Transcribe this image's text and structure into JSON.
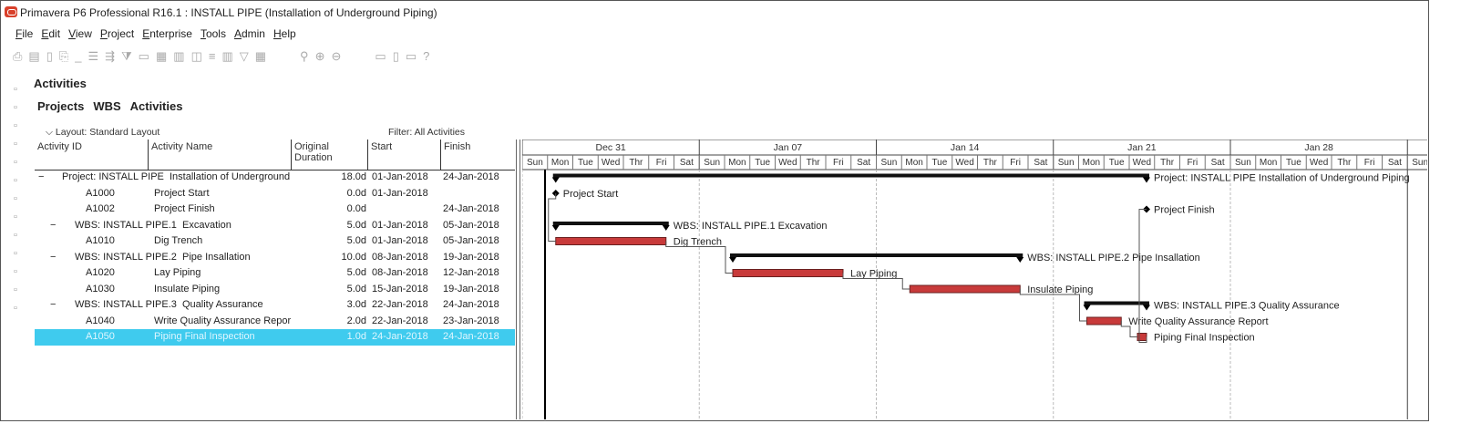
{
  "app": {
    "title": "Primavera P6 Professional R16.1 : INSTALL PIPE (Installation of Underground Piping)"
  },
  "menu": [
    "File",
    "Edit",
    "View",
    "Project",
    "Enterprise",
    "Tools",
    "Admin",
    "Help"
  ],
  "toolbar_icons": [
    "print-icon",
    "print-preview-icon",
    "page-setup-icon",
    "print-settings-icon",
    "blank-icon",
    "columns-icon",
    "group-sort-icon",
    "filter-icon",
    "bars-icon",
    "layout-icon",
    "spreadsheet-icon",
    "timescale-icon",
    "align-icon",
    "chart-icon",
    "filter-funnel-icon",
    "table-icon",
    "link-icon",
    "zoom-in-icon",
    "zoom-out-icon",
    "split-view-icon",
    "panel-icon",
    "notes-icon",
    "help-icon"
  ],
  "left_icons": [
    "add-icon",
    "delete-icon",
    "copy-icon",
    "collapse-icon",
    "expand-icon",
    "schedule-icon",
    "level-icon",
    "wbs-icon",
    "assign-icon",
    "report-icon",
    "filter-icon",
    "flag-icon",
    "sort-icon"
  ],
  "page": {
    "heading": "Activities",
    "tabs": [
      "Projects",
      "WBS",
      "Activities"
    ],
    "layout_label": "Layout: Standard Layout",
    "filter_label": "Filter: All Activities"
  },
  "columns": {
    "id": "Activity ID",
    "name": "Activity Name",
    "dur": "Original Duration",
    "start": "Start",
    "finish": "Finish"
  },
  "colors": {
    "bar": "#c83a3a",
    "summary": "#111111",
    "selected": "#3fcbee"
  },
  "timescale": {
    "weeks": [
      "Dec 31",
      "Jan 07",
      "Jan 14",
      "Jan 21",
      "Jan 28"
    ],
    "days": [
      "Sun",
      "Mon",
      "Tue",
      "Wed",
      "Thr",
      "Fri",
      "Sat"
    ]
  },
  "rows": [
    {
      "type": "project",
      "id": "Project: INSTALL PIPE",
      "name": "Installation of Underground Pi",
      "dur": "18.0d",
      "start": "01-Jan-2018",
      "finish": "24-Jan-2018",
      "label": "Project: INSTALL PIPE  Installation of Underground Piping"
    },
    {
      "type": "milestone",
      "id": "A1000",
      "name": "Project Start",
      "dur": "0.0d",
      "start": "01-Jan-2018",
      "finish": "",
      "label": "Project Start"
    },
    {
      "type": "milestone",
      "id": "A1002",
      "name": "Project Finish",
      "dur": "0.0d",
      "start": "",
      "finish": "24-Jan-2018",
      "label": "Project Finish"
    },
    {
      "type": "wbs",
      "id": "WBS: INSTALL PIPE.1",
      "name": "Excavation",
      "dur": "5.0d",
      "start": "01-Jan-2018",
      "finish": "05-Jan-2018",
      "label": "WBS: INSTALL PIPE.1  Excavation"
    },
    {
      "type": "task",
      "id": "A1010",
      "name": "Dig Trench",
      "dur": "5.0d",
      "start": "01-Jan-2018",
      "finish": "05-Jan-2018",
      "label": "Dig Trench"
    },
    {
      "type": "wbs",
      "id": "WBS: INSTALL PIPE.2",
      "name": "Pipe Insallation",
      "dur": "10.0d",
      "start": "08-Jan-2018",
      "finish": "19-Jan-2018",
      "label": "WBS: INSTALL PIPE.2  Pipe Insallation"
    },
    {
      "type": "task",
      "id": "A1020",
      "name": "Lay Piping",
      "dur": "5.0d",
      "start": "08-Jan-2018",
      "finish": "12-Jan-2018",
      "label": "Lay Piping"
    },
    {
      "type": "task",
      "id": "A1030",
      "name": "Insulate Piping",
      "dur": "5.0d",
      "start": "15-Jan-2018",
      "finish": "19-Jan-2018",
      "label": "Insulate Piping"
    },
    {
      "type": "wbs",
      "id": "WBS: INSTALL PIPE.3",
      "name": "Quality Assurance",
      "dur": "3.0d",
      "start": "22-Jan-2018",
      "finish": "24-Jan-2018",
      "label": "WBS: INSTALL PIPE.3  Quality Assurance"
    },
    {
      "type": "task",
      "id": "A1040",
      "name": "Write Quality Assurance Report",
      "dur": "2.0d",
      "start": "22-Jan-2018",
      "finish": "23-Jan-2018",
      "label": "Write Quality Assurance Report"
    },
    {
      "type": "task",
      "id": "A1050",
      "name": "Piping Final Inspection",
      "dur": "1.0d",
      "start": "24-Jan-2018",
      "finish": "24-Jan-2018",
      "label": "Piping Final Inspection",
      "selected": true
    }
  ],
  "links": [
    [
      "A1000",
      "A1010"
    ],
    [
      "A1010",
      "A1020"
    ],
    [
      "A1020",
      "A1030"
    ],
    [
      "A1030",
      "A1040"
    ],
    [
      "A1040",
      "A1050"
    ],
    [
      "A1050",
      "A1002"
    ]
  ]
}
